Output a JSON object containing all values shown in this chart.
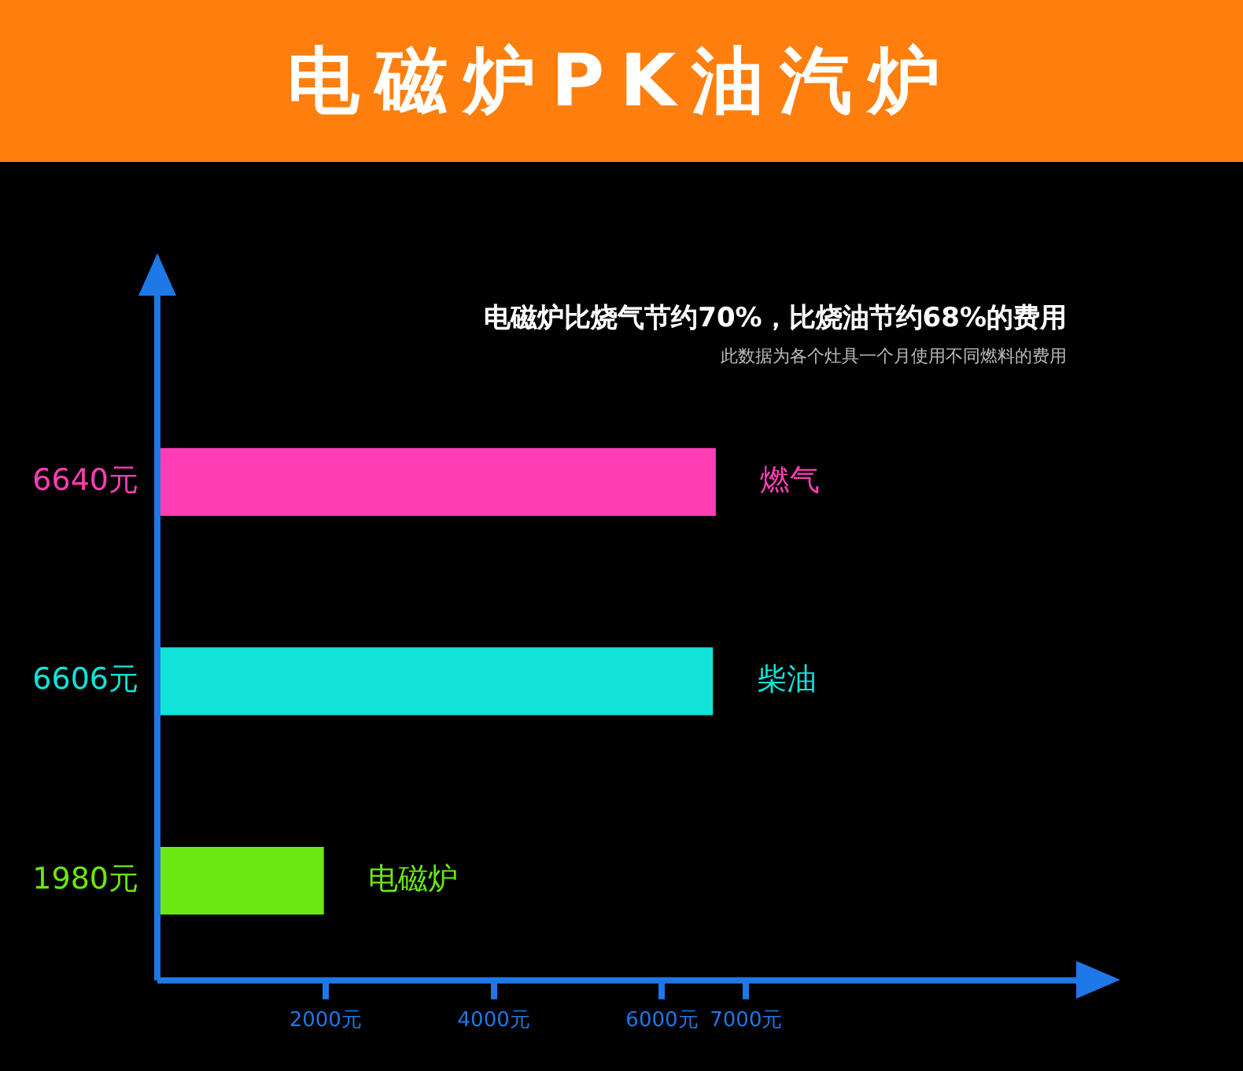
{
  "chart_data": {
    "type": "bar",
    "orientation": "horizontal",
    "title": "电磁炉PK油汽炉",
    "subtitle": "电磁炉比烧气节约70%，比烧油节约68%的费用",
    "annotations": [
      "此数据为各个灶具一个月使用不同燃料的费用"
    ],
    "categories": [
      "燃气",
      "柴油",
      "电磁炉"
    ],
    "values": [
      6640,
      6606,
      1980
    ],
    "value_labels": [
      "6640元",
      "6606元",
      "1980元"
    ],
    "colors": [
      "#ff3eb5",
      "#12e2d8",
      "#6ae812"
    ],
    "xlim": [
      0,
      11000
    ],
    "xticks": [
      {
        "value": 2000,
        "label": "2000元"
      },
      {
        "value": 4000,
        "label": "4000元"
      },
      {
        "value": 6000,
        "label": "6000元"
      },
      {
        "value": 7000,
        "label": "7000元"
      }
    ]
  }
}
